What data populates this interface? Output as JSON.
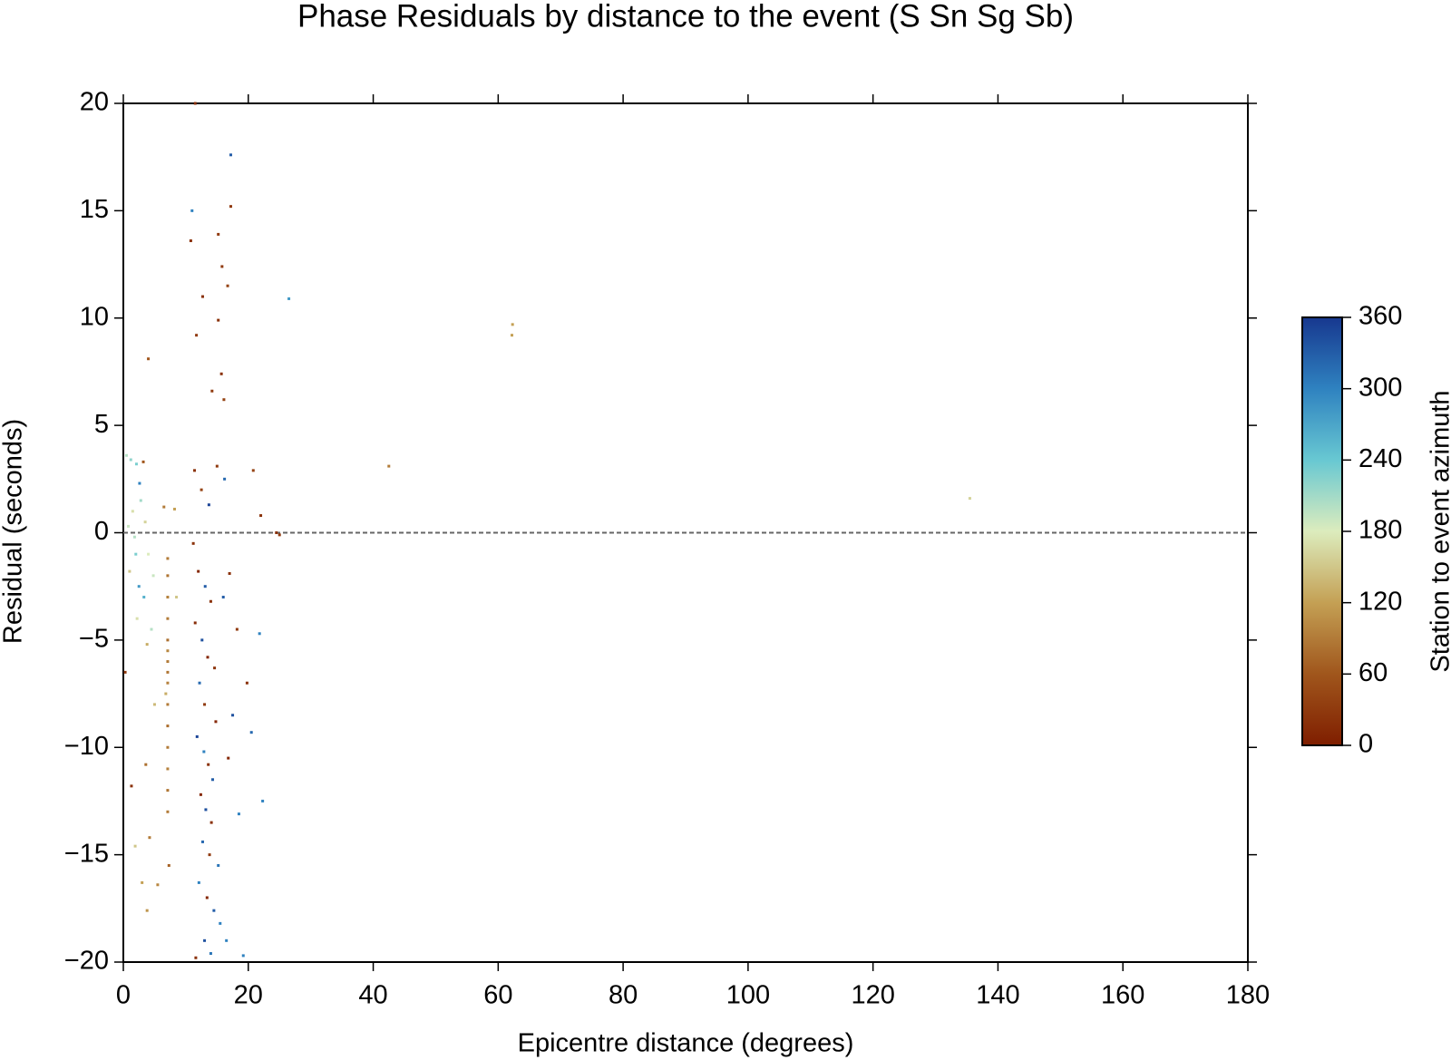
{
  "chart_data": {
    "type": "scatter",
    "title": "Phase Residuals by distance to the event (S Sn Sg Sb)",
    "xlabel": "Epicentre distance (degrees)",
    "ylabel": "Residual (seconds)",
    "xlim": [
      0,
      180
    ],
    "xticks": [
      0,
      20,
      40,
      60,
      80,
      100,
      120,
      140,
      160,
      180
    ],
    "ylim": [
      -20,
      20
    ],
    "yticks": [
      {
        "value": -20,
        "label": "−20"
      },
      {
        "value": -15,
        "label": "−15"
      },
      {
        "value": -10,
        "label": "−10"
      },
      {
        "value": -5,
        "label": "−5"
      },
      0,
      5,
      10,
      15,
      20
    ],
    "hline": 0,
    "colorbar": {
      "label": "Station to event azimuth",
      "lim": [
        0,
        360
      ],
      "ticks": [
        0,
        60,
        120,
        180,
        240,
        300,
        360
      ],
      "colormap": [
        "#7f1e00",
        "#a0561c",
        "#c4a054",
        "#dcecbd",
        "#68c8d2",
        "#2f82c0",
        "#17388f"
      ]
    },
    "x": [
      0.5,
      1.2,
      2.1,
      2.6,
      3.2,
      1.5,
      2.8,
      0.8,
      1.8,
      3.5,
      4.0,
      2.5,
      3.3,
      1.0,
      4.5,
      3.8,
      2.2,
      0.3,
      1.3,
      3.6,
      4.2,
      3.0,
      1.9,
      3.8,
      5.5,
      5.0,
      4.8,
      2.0,
      7.1,
      7.1,
      7.1,
      7.1,
      7.1,
      7.1,
      7.1,
      7.1,
      7.1,
      7.1,
      7.1,
      7.1,
      7.1,
      7.1,
      7.1,
      6.5,
      8.2,
      7.3,
      8.5,
      6.8,
      11.2,
      12.0,
      13.1,
      14.0,
      11.5,
      12.6,
      13.5,
      14.6,
      12.2,
      13.0,
      14.8,
      11.8,
      12.9,
      13.6,
      14.3,
      12.4,
      13.2,
      14.1,
      12.7,
      13.8,
      15.2,
      12.1,
      13.4,
      14.5,
      15.5,
      13.0,
      14.0,
      16.5,
      19.2,
      11.6,
      11.4,
      12.5,
      15.0,
      16.2,
      13.7,
      15.7,
      16.1,
      14.2,
      15.2,
      11.7,
      12.7,
      16.7,
      15.8,
      17.0,
      18.2,
      16.0,
      17.5,
      19.8,
      18.5,
      16.8,
      20.8,
      22.0,
      25.0,
      24.5,
      11.5,
      17.2,
      11.0,
      17.2,
      10.8,
      15.2,
      26.5,
      62.3,
      62.2,
      42.5,
      135.5,
      4.0,
      21.8,
      22.3,
      20.5
    ],
    "values": [
      3.6,
      3.4,
      3.2,
      2.3,
      3.3,
      1.0,
      1.5,
      0.3,
      -0.2,
      0.5,
      -1.0,
      -2.5,
      -3.0,
      -1.8,
      -4.5,
      -5.2,
      -4.0,
      -6.5,
      -11.8,
      -10.8,
      -14.2,
      -16.3,
      -14.6,
      -17.6,
      -16.4,
      -8.0,
      -2.0,
      -1.0,
      -1.2,
      -2,
      -3,
      -4,
      -5,
      -5.5,
      -6,
      -6.5,
      -7,
      -8,
      -9,
      -10,
      -11,
      -12,
      -13,
      1.2,
      1.1,
      -15.5,
      -3,
      -7.5,
      -0.5,
      -1.8,
      -2.5,
      -3.2,
      -4.2,
      -5.0,
      -5.8,
      -6.3,
      -7.0,
      -8.0,
      -8.8,
      -9.5,
      -10.2,
      -10.8,
      -11.5,
      -12.2,
      -12.9,
      -13.5,
      -14.4,
      -15.0,
      -15.5,
      -16.3,
      -17.0,
      -17.6,
      -18.2,
      -19.0,
      -19.6,
      -19.0,
      -19.7,
      -19.8,
      2.9,
      2.0,
      3.1,
      2.5,
      1.3,
      7.4,
      6.2,
      6.6,
      9.9,
      9.2,
      11.0,
      11.5,
      12.4,
      -1.9,
      -4.5,
      -3.0,
      -8.5,
      -7.0,
      -13.1,
      -10.5,
      2.9,
      0.8,
      -0.1,
      0.0,
      20,
      17.6,
      15,
      15.2,
      13.6,
      13.9,
      10.9,
      9.7,
      9.2,
      3.1,
      1.6,
      8.1,
      -4.7,
      -12.5,
      -9.3
    ],
    "c": [
      200,
      220,
      230,
      300,
      60,
      170,
      210,
      190,
      200,
      160,
      180,
      280,
      260,
      150,
      200,
      130,
      170,
      30,
      20,
      80,
      90,
      120,
      150,
      110,
      100,
      140,
      190,
      230,
      90,
      85,
      95,
      90,
      80,
      100,
      90,
      85,
      95,
      90,
      80,
      90,
      95,
      85,
      90,
      90,
      120,
      70,
      150,
      130,
      20,
      10,
      330,
      20,
      15,
      340,
      10,
      25,
      320,
      30,
      10,
      350,
      300,
      20,
      330,
      10,
      340,
      20,
      320,
      30,
      310,
      300,
      10,
      330,
      300,
      340,
      310,
      300,
      300,
      20,
      20,
      40,
      30,
      320,
      350,
      20,
      40,
      30,
      20,
      30,
      20,
      40,
      30,
      20,
      30,
      330,
      340,
      20,
      300,
      10,
      40,
      20,
      30,
      20,
      20,
      330,
      300,
      30,
      20,
      30,
      280,
      120,
      120,
      90,
      160,
      60,
      300,
      300,
      320
    ]
  }
}
